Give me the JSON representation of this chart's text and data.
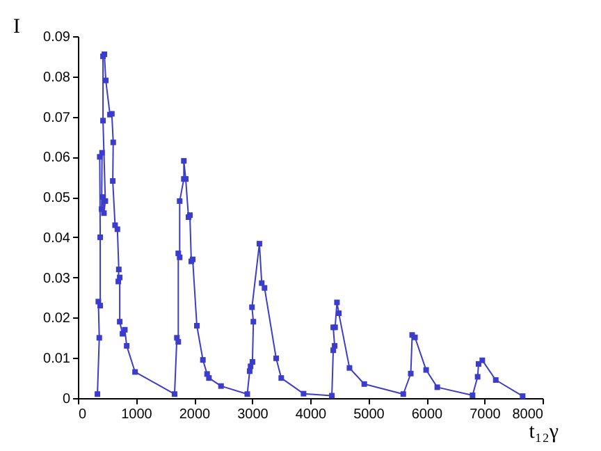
{
  "chart_data": {
    "type": "line",
    "xlabel": "t₁₂γ",
    "ylabel": "I",
    "marker": "square",
    "xlim": [
      0,
      8000
    ],
    "xticks": [
      0,
      1000,
      2000,
      3000,
      4000,
      5000,
      6000,
      7000,
      8000
    ],
    "ylim": [
      0,
      0.09
    ],
    "yticks": [
      0,
      0.01,
      0.02,
      0.03,
      0.04,
      0.05,
      0.06,
      0.07,
      0.08,
      0.09
    ],
    "series": [
      {
        "color": "#3c3ccc",
        "x": [
          336,
          368,
          352,
          384,
          384,
          376,
          416,
          408,
          432,
          448,
          472,
          432,
          432,
          456,
          480,
          552,
          584,
          608,
          600,
          640,
          680,
          704,
          696,
          720,
          720,
          768,
          808,
          840,
          984,
          1664,
          1704,
          1728,
          1728,
          1752,
          1752,
          1824,
          1824,
          1856,
          1904,
          1928,
          1952,
          1976,
          2048,
          2152,
          2224,
          2256,
          2464,
          2916,
          2957,
          2973,
          3005,
          3021,
          2997,
          3125,
          3165,
          3213,
          3413,
          3501,
          3885,
          4372,
          4396,
          4420,
          4396,
          4428,
          4460,
          4492,
          4676,
          4930,
          5602,
          5731,
          5755,
          5803,
          5995,
          6187,
          6794,
          6882,
          6898,
          6962,
          7194,
          7657
        ],
        "values": [
          0.001,
          0.015,
          0.024,
          0.023,
          0.04,
          0.06,
          0.061,
          0.047,
          0.05,
          0.046,
          0.049,
          0.069,
          0.085,
          0.0855,
          0.079,
          0.0705,
          0.0707,
          0.0636,
          0.054,
          0.043,
          0.042,
          0.032,
          0.029,
          0.03,
          0.019,
          0.016,
          0.017,
          0.013,
          0.0065,
          0.001,
          0.015,
          0.014,
          0.036,
          0.035,
          0.049,
          0.0545,
          0.059,
          0.0545,
          0.045,
          0.0455,
          0.034,
          0.0345,
          0.018,
          0.0095,
          0.006,
          0.005,
          0.003,
          0.001,
          0.0067,
          0.0079,
          0.009,
          0.019,
          0.0226,
          0.0384,
          0.0286,
          0.0274,
          0.0099,
          0.005,
          0.0011,
          0.0006,
          0.0119,
          0.013,
          0.0176,
          0.0176,
          0.0238,
          0.0211,
          0.0075,
          0.0035,
          0.001,
          0.0061,
          0.0157,
          0.0151,
          0.007,
          0.0027,
          0.0007,
          0.0053,
          0.0085,
          0.0094,
          0.0045,
          0.0005
        ]
      }
    ]
  }
}
